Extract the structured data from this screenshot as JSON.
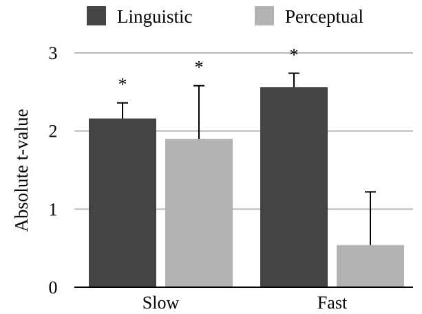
{
  "chart_data": {
    "type": "bar",
    "title": "",
    "xlabel": "",
    "ylabel": "Absolute t-value",
    "ylim": [
      0,
      3
    ],
    "yticks": [
      "0",
      "1",
      "2",
      "3"
    ],
    "grid": true,
    "legend_position": "top",
    "categories": [
      "Slow",
      "Fast"
    ],
    "series": [
      {
        "name": "Linguistic",
        "color": "#444444",
        "values": [
          2.16,
          2.56
        ],
        "error_upper": [
          2.36,
          2.74
        ],
        "significance": [
          "*",
          "*"
        ]
      },
      {
        "name": "Perceptual",
        "color": "#b3b3b3",
        "values": [
          1.9,
          0.54
        ],
        "error_upper": [
          2.58,
          1.22
        ],
        "significance": [
          "*",
          ""
        ]
      }
    ]
  }
}
